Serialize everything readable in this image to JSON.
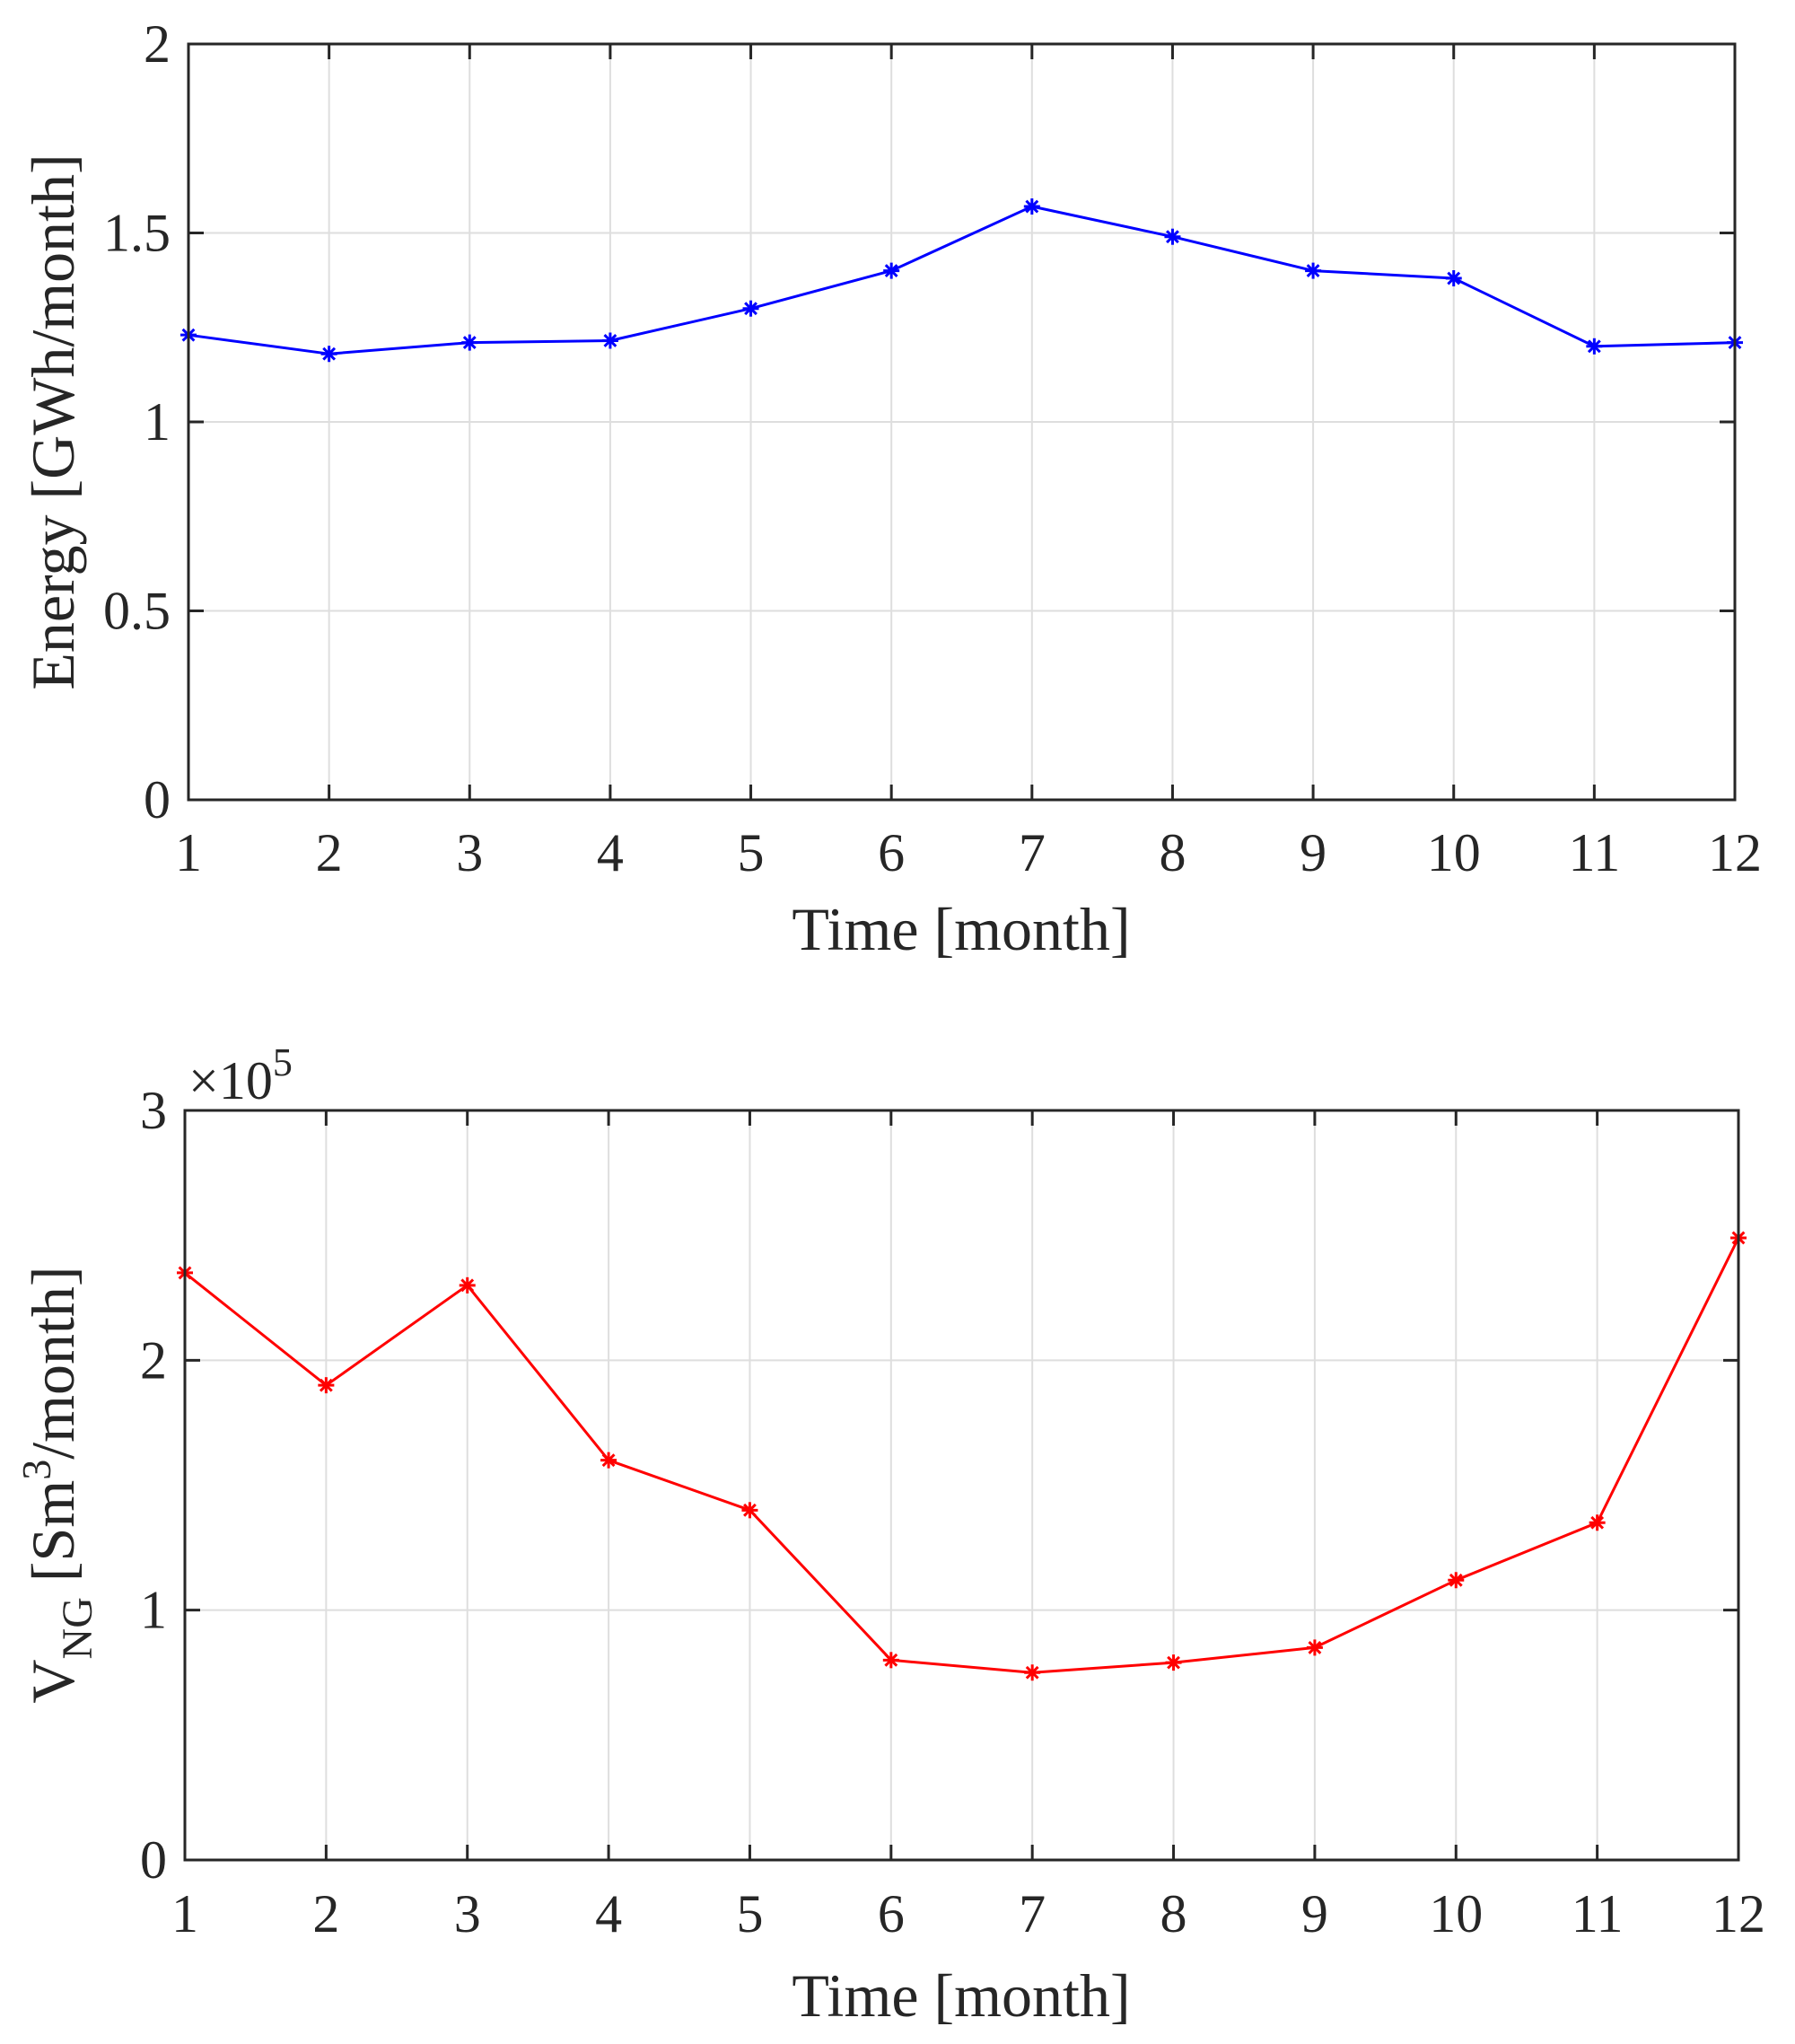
{
  "chart_data": [
    {
      "type": "line",
      "x": [
        1,
        2,
        3,
        4,
        5,
        6,
        7,
        8,
        9,
        10,
        11,
        12
      ],
      "xticks": [
        1,
        2,
        3,
        4,
        5,
        6,
        7,
        8,
        9,
        10,
        11,
        12
      ],
      "xtick_labels": [
        "1",
        "2",
        "3",
        "4",
        "5",
        "6",
        "7",
        "8",
        "9",
        "10",
        "11",
        "12"
      ],
      "xlim": [
        1,
        12
      ],
      "yticks": [
        0,
        0.5,
        1,
        1.5,
        2
      ],
      "ytick_labels": [
        "0",
        "0.5",
        "1",
        "1.5",
        "2"
      ],
      "ylim": [
        0,
        2
      ],
      "xlabel": "Time [month]",
      "ylabel": "Energy [GWh/month]",
      "grid": true,
      "series": [
        {
          "name": "Energy",
          "color": "#0000ff",
          "marker": "asterisk",
          "values": [
            1.23,
            1.18,
            1.21,
            1.215,
            1.3,
            1.4,
            1.57,
            1.49,
            1.4,
            1.38,
            1.2,
            1.21
          ]
        }
      ]
    },
    {
      "type": "line",
      "x": [
        1,
        2,
        3,
        4,
        5,
        6,
        7,
        8,
        9,
        10,
        11,
        12
      ],
      "xticks": [
        1,
        2,
        3,
        4,
        5,
        6,
        7,
        8,
        9,
        10,
        11,
        12
      ],
      "xtick_labels": [
        "1",
        "2",
        "3",
        "4",
        "5",
        "6",
        "7",
        "8",
        "9",
        "10",
        "11",
        "12"
      ],
      "xlim": [
        1,
        12
      ],
      "yticks": [
        0,
        100000,
        200000,
        300000
      ],
      "ytick_labels": [
        "0",
        "1",
        "2",
        "3"
      ],
      "ylim": [
        0,
        300000
      ],
      "exponent_label": "×10",
      "exponent_power": "5",
      "xlabel": "Time [month]",
      "ylabel": {
        "base": "V",
        "subscript": "NG",
        "unit_open": " [Sm",
        "superscript": "3",
        "unit_close": "/month]"
      },
      "grid": true,
      "series": [
        {
          "name": "V_NG",
          "color": "#ff0000",
          "marker": "asterisk",
          "values": [
            235000,
            190000,
            230000,
            160000,
            140000,
            80000,
            75000,
            79000,
            85000,
            112000,
            135000,
            249000
          ]
        }
      ]
    }
  ]
}
